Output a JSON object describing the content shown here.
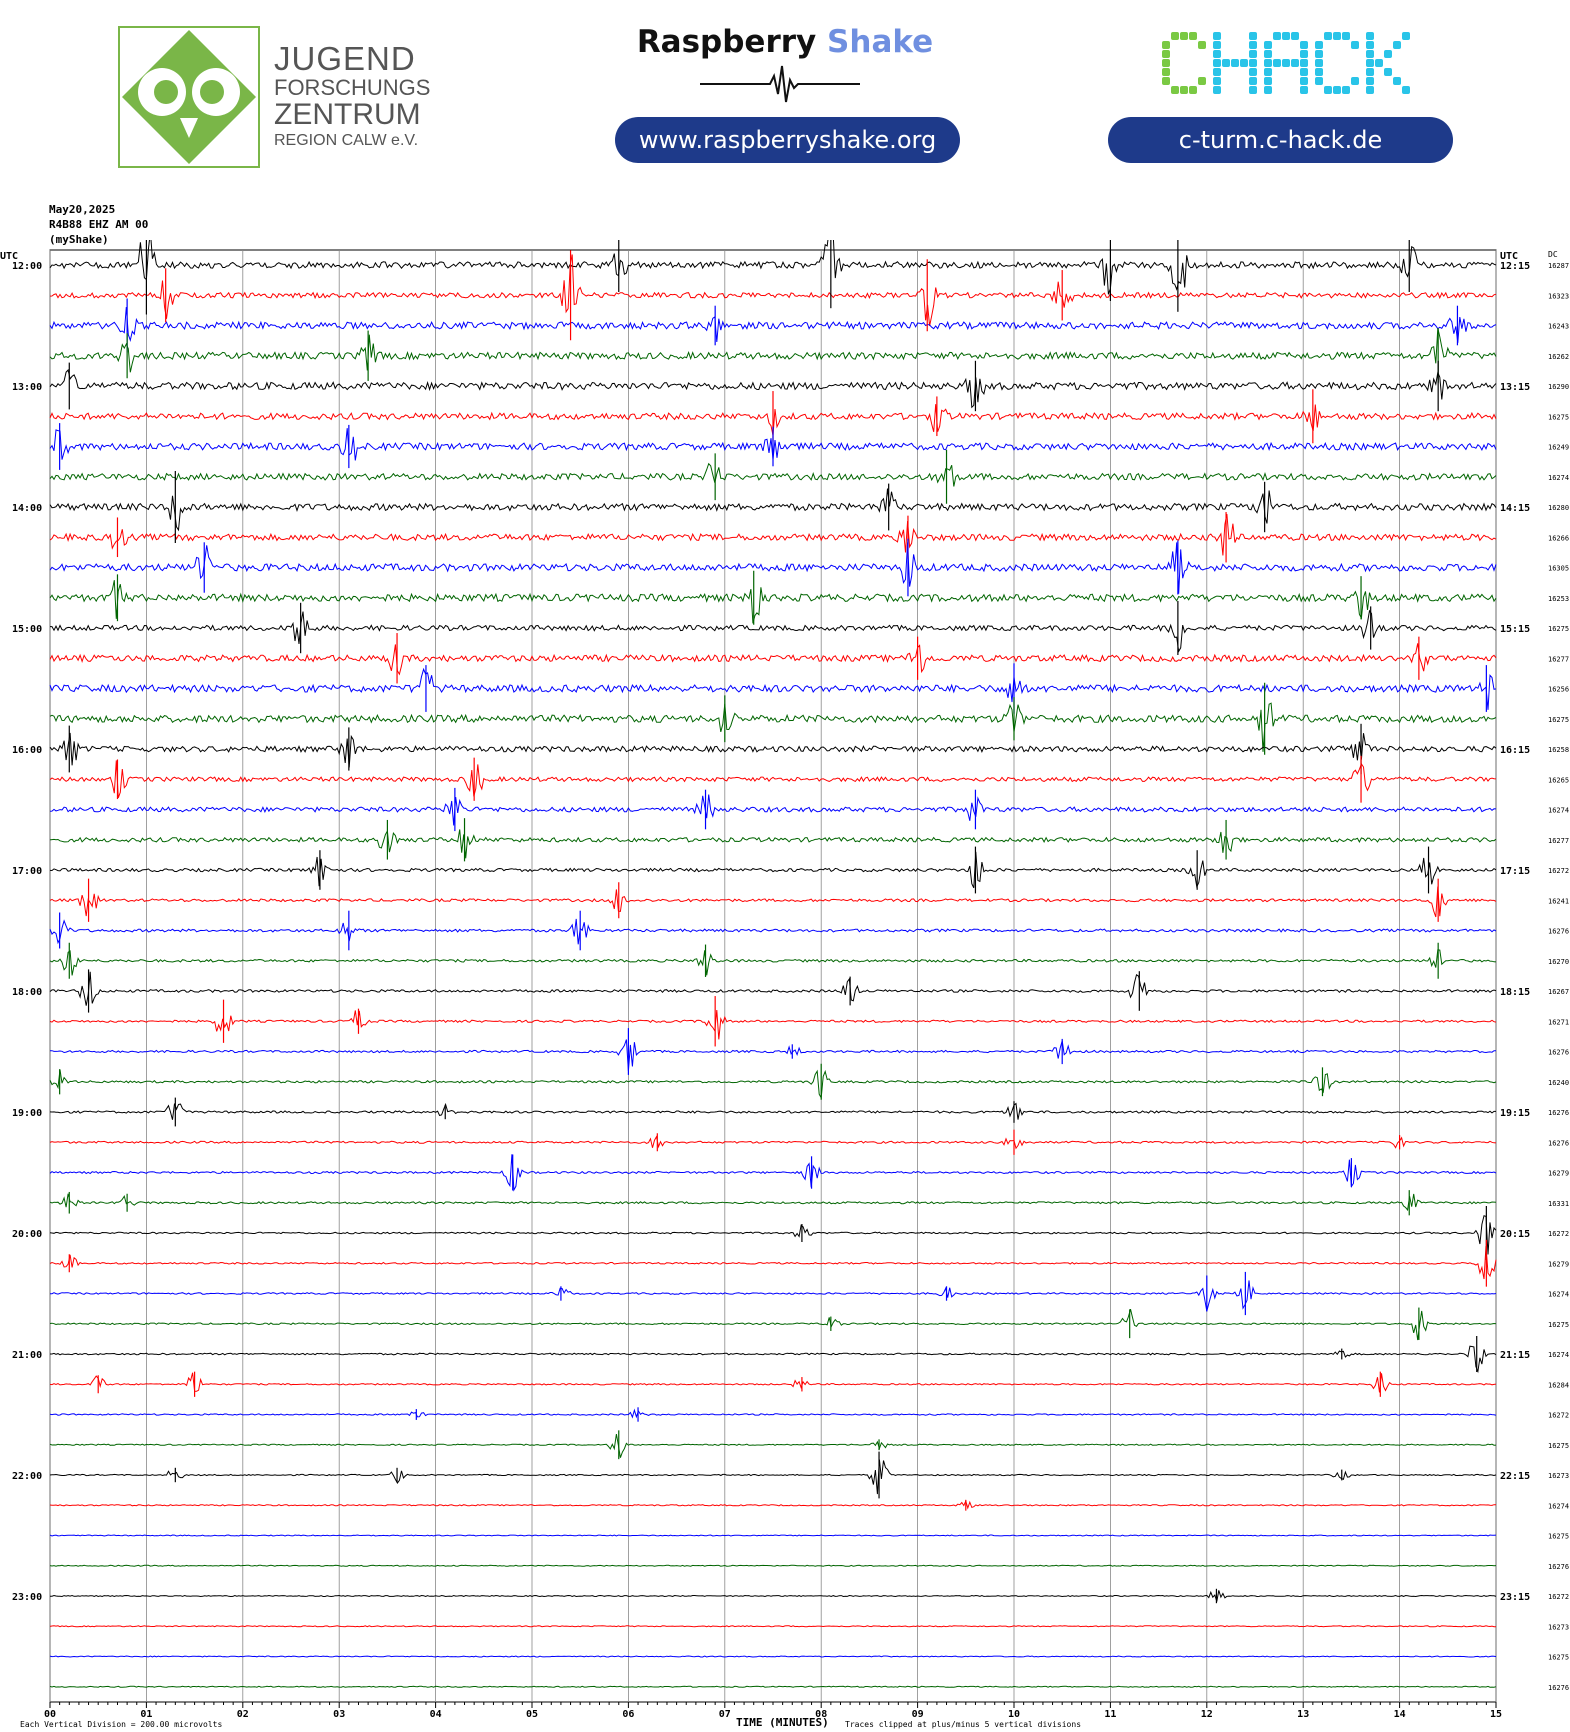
{
  "header": {
    "jfz": {
      "line1": "JUGEND",
      "line2": "FORSCHUNGS",
      "line3": "ZENTRUM",
      "line4": "REGION CALW e.V."
    },
    "rs_title_a": "Raspberry",
    "rs_title_b": "Shake",
    "rs_url": "www.raspberryshake.org",
    "chack_logo": "CHACK",
    "chack_url": "c-turm.c-hack.de",
    "colors": {
      "jfz_green": "#7ab648",
      "pill_blue": "#1e3a8a",
      "rs_shake": "#6f8fe0",
      "chack_green": "#7ac943",
      "chack_cyan": "#29c4e8"
    }
  },
  "meta": {
    "date": "May20,2025",
    "station": "R4B88 EHZ AM 00",
    "source": "(myShake)"
  },
  "chart_data": {
    "type": "helicorder",
    "left_axis_label": "UTC",
    "right_axis_label": "UTC",
    "dc_header": "DC",
    "x_ticks": [
      "00",
      "01",
      "02",
      "03",
      "04",
      "05",
      "06",
      "07",
      "08",
      "09",
      "10",
      "11",
      "12",
      "13",
      "14",
      "15"
    ],
    "x_range": [
      0,
      15
    ],
    "xlabel": "TIME (MINUTES)",
    "trace_colors": [
      "#000000",
      "#ff0000",
      "#0000ff",
      "#006400"
    ],
    "rows": [
      {
        "left": "12:00",
        "right": "12:15",
        "dc": "16287",
        "noise": 3.2
      },
      {
        "left": "",
        "right": "",
        "dc": "16323",
        "noise": 2.6
      },
      {
        "left": "",
        "right": "",
        "dc": "16243",
        "noise": 3.4
      },
      {
        "left": "",
        "right": "",
        "dc": "16262",
        "noise": 3.4
      },
      {
        "left": "13:00",
        "right": "13:15",
        "dc": "16290",
        "noise": 3.6
      },
      {
        "left": "",
        "right": "",
        "dc": "16275",
        "noise": 3.2
      },
      {
        "left": "",
        "right": "",
        "dc": "16249",
        "noise": 3.4
      },
      {
        "left": "",
        "right": "",
        "dc": "16274",
        "noise": 3.2
      },
      {
        "left": "14:00",
        "right": "14:15",
        "dc": "16280",
        "noise": 3.4
      },
      {
        "left": "",
        "right": "",
        "dc": "16266",
        "noise": 3.2
      },
      {
        "left": "",
        "right": "",
        "dc": "16305",
        "noise": 3.6
      },
      {
        "left": "",
        "right": "",
        "dc": "16253",
        "noise": 3.6
      },
      {
        "left": "15:00",
        "right": "15:15",
        "dc": "16275",
        "noise": 2.6
      },
      {
        "left": "",
        "right": "",
        "dc": "16277",
        "noise": 3.2
      },
      {
        "left": "",
        "right": "",
        "dc": "16256",
        "noise": 3.6
      },
      {
        "left": "",
        "right": "",
        "dc": "16275",
        "noise": 3.6
      },
      {
        "left": "16:00",
        "right": "16:15",
        "dc": "16258",
        "noise": 2.8
      },
      {
        "left": "",
        "right": "",
        "dc": "16265",
        "noise": 2.2
      },
      {
        "left": "",
        "right": "",
        "dc": "16274",
        "noise": 2.4
      },
      {
        "left": "",
        "right": "",
        "dc": "16277",
        "noise": 2.2
      },
      {
        "left": "17:00",
        "right": "17:15",
        "dc": "16272",
        "noise": 1.6
      },
      {
        "left": "",
        "right": "",
        "dc": "16241",
        "noise": 1.4
      },
      {
        "left": "",
        "right": "",
        "dc": "16276",
        "noise": 1.4
      },
      {
        "left": "",
        "right": "",
        "dc": "16270",
        "noise": 1.3
      },
      {
        "left": "18:00",
        "right": "18:15",
        "dc": "16267",
        "noise": 1.3
      },
      {
        "left": "",
        "right": "",
        "dc": "16271",
        "noise": 1.1
      },
      {
        "left": "",
        "right": "",
        "dc": "16276",
        "noise": 1.1
      },
      {
        "left": "",
        "right": "",
        "dc": "16240",
        "noise": 1.1
      },
      {
        "left": "19:00",
        "right": "19:15",
        "dc": "16276",
        "noise": 1.1
      },
      {
        "left": "",
        "right": "",
        "dc": "16276",
        "noise": 1.0
      },
      {
        "left": "",
        "right": "",
        "dc": "16279",
        "noise": 1.0
      },
      {
        "left": "",
        "right": "",
        "dc": "16331",
        "noise": 1.0
      },
      {
        "left": "20:00",
        "right": "20:15",
        "dc": "16272",
        "noise": 0.8
      },
      {
        "left": "",
        "right": "",
        "dc": "16279",
        "noise": 0.8
      },
      {
        "left": "",
        "right": "",
        "dc": "16274",
        "noise": 0.8
      },
      {
        "left": "",
        "right": "",
        "dc": "16275",
        "noise": 0.8
      },
      {
        "left": "21:00",
        "right": "21:15",
        "dc": "16274",
        "noise": 0.8
      },
      {
        "left": "",
        "right": "",
        "dc": "16284",
        "noise": 0.7
      },
      {
        "left": "",
        "right": "",
        "dc": "16272",
        "noise": 0.7
      },
      {
        "left": "",
        "right": "",
        "dc": "16275",
        "noise": 0.6
      },
      {
        "left": "22:00",
        "right": "22:15",
        "dc": "16273",
        "noise": 0.6
      },
      {
        "left": "",
        "right": "",
        "dc": "16274",
        "noise": 0.6
      },
      {
        "left": "",
        "right": "",
        "dc": "16275",
        "noise": 0.5
      },
      {
        "left": "",
        "right": "",
        "dc": "16276",
        "noise": 0.5
      },
      {
        "left": "23:00",
        "right": "23:15",
        "dc": "16272",
        "noise": 0.5
      },
      {
        "left": "",
        "right": "",
        "dc": "16273",
        "noise": 0.5
      },
      {
        "left": "",
        "right": "",
        "dc": "16275",
        "noise": 0.5
      },
      {
        "left": "",
        "right": "",
        "dc": "16276",
        "noise": 0.5
      }
    ],
    "events": [
      {
        "row": 0,
        "t": 1.0,
        "amp": 55
      },
      {
        "row": 0,
        "t": 8.1,
        "amp": 48
      },
      {
        "row": 0,
        "t": 11.7,
        "amp": 52
      },
      {
        "row": 0,
        "t": 11.0,
        "amp": 40
      },
      {
        "row": 0,
        "t": 5.9,
        "amp": 30
      },
      {
        "row": 0,
        "t": 14.1,
        "amp": 30
      },
      {
        "row": 1,
        "t": 5.4,
        "amp": 50
      },
      {
        "row": 1,
        "t": 9.1,
        "amp": 40
      },
      {
        "row": 1,
        "t": 1.2,
        "amp": 30
      },
      {
        "row": 1,
        "t": 10.5,
        "amp": 28
      },
      {
        "row": 2,
        "t": 0.8,
        "amp": 30
      },
      {
        "row": 2,
        "t": 6.9,
        "amp": 22
      },
      {
        "row": 2,
        "t": 14.6,
        "amp": 22
      },
      {
        "row": 3,
        "t": 0.8,
        "amp": 25
      },
      {
        "row": 3,
        "t": 3.3,
        "amp": 28
      },
      {
        "row": 3,
        "t": 14.4,
        "amp": 30
      },
      {
        "row": 4,
        "t": 9.6,
        "amp": 28
      },
      {
        "row": 4,
        "t": 0.2,
        "amp": 26
      },
      {
        "row": 4,
        "t": 14.4,
        "amp": 28
      },
      {
        "row": 5,
        "t": 7.5,
        "amp": 28
      },
      {
        "row": 5,
        "t": 13.1,
        "amp": 30
      },
      {
        "row": 5,
        "t": 9.2,
        "amp": 22
      },
      {
        "row": 6,
        "t": 0.1,
        "amp": 26
      },
      {
        "row": 6,
        "t": 7.5,
        "amp": 22
      },
      {
        "row": 6,
        "t": 3.1,
        "amp": 24
      },
      {
        "row": 7,
        "t": 9.3,
        "amp": 30
      },
      {
        "row": 7,
        "t": 6.9,
        "amp": 26
      },
      {
        "row": 8,
        "t": 1.3,
        "amp": 40
      },
      {
        "row": 8,
        "t": 12.6,
        "amp": 28
      },
      {
        "row": 8,
        "t": 8.7,
        "amp": 26
      },
      {
        "row": 9,
        "t": 12.2,
        "amp": 28
      },
      {
        "row": 9,
        "t": 8.9,
        "amp": 24
      },
      {
        "row": 9,
        "t": 0.7,
        "amp": 22
      },
      {
        "row": 10,
        "t": 8.9,
        "amp": 32
      },
      {
        "row": 10,
        "t": 11.7,
        "amp": 30
      },
      {
        "row": 10,
        "t": 1.6,
        "amp": 28
      },
      {
        "row": 11,
        "t": 7.3,
        "amp": 30
      },
      {
        "row": 11,
        "t": 0.7,
        "amp": 26
      },
      {
        "row": 11,
        "t": 13.6,
        "amp": 24
      },
      {
        "row": 12,
        "t": 11.7,
        "amp": 30
      },
      {
        "row": 12,
        "t": 2.6,
        "amp": 28
      },
      {
        "row": 12,
        "t": 13.7,
        "amp": 24
      },
      {
        "row": 13,
        "t": 3.6,
        "amp": 28
      },
      {
        "row": 13,
        "t": 14.2,
        "amp": 24
      },
      {
        "row": 13,
        "t": 9.0,
        "amp": 24
      },
      {
        "row": 14,
        "t": 3.9,
        "amp": 26
      },
      {
        "row": 14,
        "t": 10.0,
        "amp": 28
      },
      {
        "row": 14,
        "t": 14.9,
        "amp": 26
      },
      {
        "row": 15,
        "t": 12.6,
        "amp": 40
      },
      {
        "row": 15,
        "t": 7.0,
        "amp": 26
      },
      {
        "row": 15,
        "t": 10.0,
        "amp": 24
      },
      {
        "row": 16,
        "t": 0.2,
        "amp": 26
      },
      {
        "row": 16,
        "t": 13.6,
        "amp": 28
      },
      {
        "row": 16,
        "t": 3.1,
        "amp": 24
      },
      {
        "row": 17,
        "t": 0.7,
        "amp": 22
      },
      {
        "row": 17,
        "t": 13.6,
        "amp": 26
      },
      {
        "row": 17,
        "t": 4.4,
        "amp": 24
      },
      {
        "row": 18,
        "t": 4.2,
        "amp": 24
      },
      {
        "row": 18,
        "t": 6.8,
        "amp": 22
      },
      {
        "row": 18,
        "t": 9.6,
        "amp": 22
      },
      {
        "row": 19,
        "t": 3.5,
        "amp": 22
      },
      {
        "row": 19,
        "t": 4.3,
        "amp": 24
      },
      {
        "row": 19,
        "t": 12.2,
        "amp": 22
      },
      {
        "row": 20,
        "t": 2.8,
        "amp": 22
      },
      {
        "row": 20,
        "t": 9.6,
        "amp": 26
      },
      {
        "row": 20,
        "t": 14.3,
        "amp": 26
      },
      {
        "row": 20,
        "t": 11.9,
        "amp": 22
      },
      {
        "row": 21,
        "t": 0.4,
        "amp": 24
      },
      {
        "row": 21,
        "t": 14.4,
        "amp": 24
      },
      {
        "row": 21,
        "t": 5.9,
        "amp": 20
      },
      {
        "row": 22,
        "t": 0.1,
        "amp": 20
      },
      {
        "row": 22,
        "t": 3.1,
        "amp": 22
      },
      {
        "row": 22,
        "t": 5.5,
        "amp": 22
      },
      {
        "row": 23,
        "t": 0.2,
        "amp": 20
      },
      {
        "row": 23,
        "t": 14.4,
        "amp": 20
      },
      {
        "row": 23,
        "t": 6.8,
        "amp": 18
      },
      {
        "row": 24,
        "t": 0.4,
        "amp": 24
      },
      {
        "row": 24,
        "t": 11.3,
        "amp": 22
      },
      {
        "row": 24,
        "t": 8.3,
        "amp": 16
      },
      {
        "row": 25,
        "t": 1.8,
        "amp": 24
      },
      {
        "row": 25,
        "t": 6.9,
        "amp": 28
      },
      {
        "row": 25,
        "t": 3.2,
        "amp": 14
      },
      {
        "row": 26,
        "t": 6.0,
        "amp": 26
      },
      {
        "row": 26,
        "t": 10.5,
        "amp": 14
      },
      {
        "row": 26,
        "t": 7.7,
        "amp": 8
      },
      {
        "row": 27,
        "t": 8.0,
        "amp": 20
      },
      {
        "row": 27,
        "t": 13.2,
        "amp": 16
      },
      {
        "row": 27,
        "t": 0.1,
        "amp": 14
      },
      {
        "row": 28,
        "t": 1.3,
        "amp": 16
      },
      {
        "row": 28,
        "t": 10.0,
        "amp": 12
      },
      {
        "row": 28,
        "t": 4.1,
        "amp": 8
      },
      {
        "row": 29,
        "t": 6.3,
        "amp": 10
      },
      {
        "row": 29,
        "t": 10.0,
        "amp": 14
      },
      {
        "row": 29,
        "t": 14.0,
        "amp": 8
      },
      {
        "row": 30,
        "t": 4.8,
        "amp": 20
      },
      {
        "row": 30,
        "t": 7.9,
        "amp": 18
      },
      {
        "row": 30,
        "t": 13.5,
        "amp": 16
      },
      {
        "row": 31,
        "t": 0.2,
        "amp": 12
      },
      {
        "row": 31,
        "t": 0.8,
        "amp": 10
      },
      {
        "row": 31,
        "t": 14.1,
        "amp": 14
      },
      {
        "row": 32,
        "t": 7.8,
        "amp": 10
      },
      {
        "row": 32,
        "t": 14.9,
        "amp": 30
      },
      {
        "row": 33,
        "t": 0.2,
        "amp": 10
      },
      {
        "row": 33,
        "t": 14.9,
        "amp": 26
      },
      {
        "row": 34,
        "t": 12.0,
        "amp": 20
      },
      {
        "row": 34,
        "t": 12.4,
        "amp": 24
      },
      {
        "row": 34,
        "t": 9.3,
        "amp": 8
      },
      {
        "row": 34,
        "t": 5.3,
        "amp": 8
      },
      {
        "row": 35,
        "t": 11.2,
        "amp": 16
      },
      {
        "row": 35,
        "t": 14.2,
        "amp": 18
      },
      {
        "row": 35,
        "t": 8.1,
        "amp": 8
      },
      {
        "row": 36,
        "t": 14.8,
        "amp": 20
      },
      {
        "row": 36,
        "t": 13.4,
        "amp": 6
      },
      {
        "row": 37,
        "t": 0.5,
        "amp": 10
      },
      {
        "row": 37,
        "t": 1.5,
        "amp": 14
      },
      {
        "row": 37,
        "t": 13.8,
        "amp": 14
      },
      {
        "row": 37,
        "t": 7.8,
        "amp": 8
      },
      {
        "row": 38,
        "t": 6.1,
        "amp": 8
      },
      {
        "row": 38,
        "t": 3.8,
        "amp": 6
      },
      {
        "row": 39,
        "t": 5.9,
        "amp": 16
      },
      {
        "row": 39,
        "t": 8.6,
        "amp": 6
      },
      {
        "row": 40,
        "t": 1.3,
        "amp": 8
      },
      {
        "row": 40,
        "t": 3.6,
        "amp": 8
      },
      {
        "row": 40,
        "t": 8.6,
        "amp": 26
      },
      {
        "row": 40,
        "t": 13.4,
        "amp": 6
      },
      {
        "row": 41,
        "t": 9.5,
        "amp": 6
      },
      {
        "row": 44,
        "t": 12.1,
        "amp": 8
      }
    ],
    "footer": {
      "left": "Each Vertical Division =  200.00 microvolts",
      "right": "Traces clipped at plus/minus 5 vertical divisions"
    }
  }
}
